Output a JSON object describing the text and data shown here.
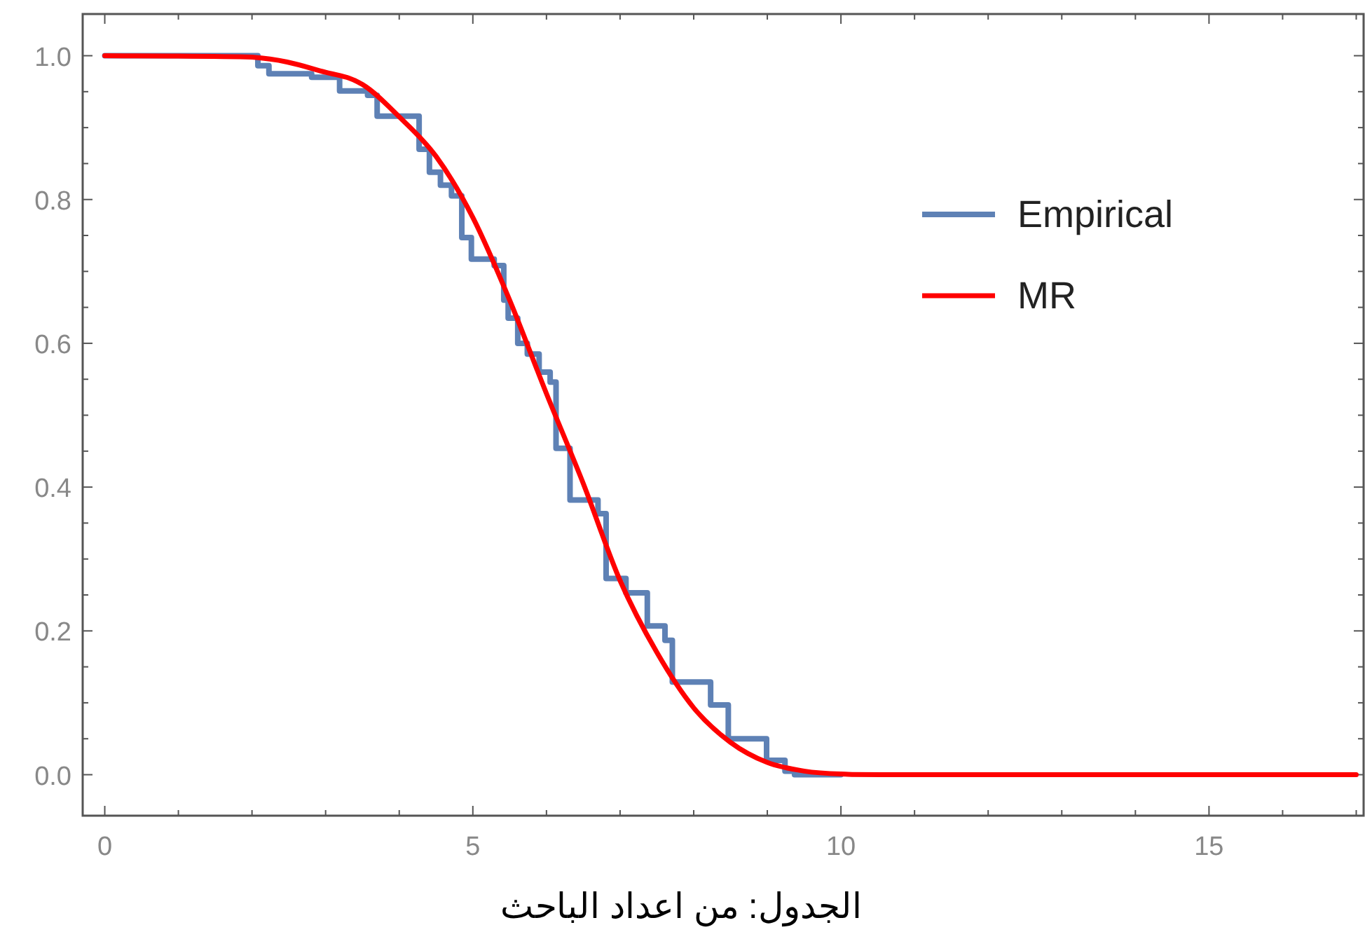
{
  "chart_data": {
    "type": "line",
    "xlim": [
      -0.3,
      17.1
    ],
    "ylim": [
      -0.057,
      1.058
    ],
    "xticks": [
      0,
      {
        "value": 1,
        "label": null
      },
      {
        "value": 2,
        "label": null
      },
      {
        "value": 3,
        "label": null
      },
      {
        "value": 4,
        "label": null
      },
      5,
      {
        "value": 6,
        "label": null
      },
      {
        "value": 7,
        "label": null
      },
      {
        "value": 8,
        "label": null
      },
      {
        "value": 9,
        "label": null
      },
      10,
      {
        "value": 11,
        "label": null
      },
      {
        "value": 12,
        "label": null
      },
      {
        "value": 13,
        "label": null
      },
      {
        "value": 14,
        "label": null
      },
      15,
      {
        "value": 16,
        "label": null
      },
      {
        "value": 17,
        "label": null
      }
    ],
    "yticks": [
      {
        "value": 0,
        "label": "0.0"
      },
      {
        "value": 0.05,
        "label": null
      },
      {
        "value": 0.1,
        "label": null
      },
      {
        "value": 0.15,
        "label": null
      },
      {
        "value": 0.2,
        "label": "0.2"
      },
      {
        "value": 0.25,
        "label": null
      },
      {
        "value": 0.3,
        "label": null
      },
      {
        "value": 0.35,
        "label": null
      },
      {
        "value": 0.4,
        "label": "0.4"
      },
      {
        "value": 0.45,
        "label": null
      },
      {
        "value": 0.5,
        "label": null
      },
      {
        "value": 0.55,
        "label": null
      },
      {
        "value": 0.6,
        "label": "0.6"
      },
      {
        "value": 0.65,
        "label": null
      },
      {
        "value": 0.7,
        "label": null
      },
      {
        "value": 0.75,
        "label": null
      },
      {
        "value": 0.8,
        "label": "0.8"
      },
      {
        "value": 0.85,
        "label": null
      },
      {
        "value": 0.9,
        "label": null
      },
      {
        "value": 0.95,
        "label": null
      },
      {
        "value": 1.0,
        "label": "1.0"
      }
    ],
    "legend": "top right",
    "annotations": [
      "الجدول: من اعداد الباحث"
    ],
    "series": [
      {
        "name": "Empirical",
        "type": "step",
        "color": "#5e81b5",
        "x": [
          0,
          2.08,
          2.23,
          2.81,
          3.19,
          3.57,
          3.7,
          4.27,
          4.41,
          4.56,
          4.71,
          4.85,
          4.98,
          5.29,
          5.42,
          5.48,
          5.61,
          5.74,
          5.9,
          6.05,
          6.13,
          6.32,
          6.7,
          6.81,
          7.08,
          7.37,
          7.61,
          7.71,
          8.23,
          8.47,
          8.99,
          9.24,
          9.37,
          10
        ],
        "values": [
          1.0,
          0.986,
          0.975,
          0.97,
          0.951,
          0.945,
          0.916,
          0.87,
          0.838,
          0.82,
          0.805,
          0.747,
          0.717,
          0.708,
          0.66,
          0.635,
          0.6,
          0.585,
          0.56,
          0.546,
          0.454,
          0.382,
          0.363,
          0.273,
          0.253,
          0.207,
          0.187,
          0.129,
          0.097,
          0.05,
          0.02,
          0.005,
          0.0,
          0.0
        ]
      },
      {
        "name": "MR",
        "color": "#ff0000",
        "x": [
          0,
          2,
          3,
          3.5,
          4,
          4.5,
          5,
          5.5,
          6,
          6.5,
          7,
          7.5,
          8,
          8.5,
          9,
          9.5,
          10,
          11,
          17
        ],
        "values": [
          1.0,
          0.998,
          0.977,
          0.96,
          0.915,
          0.86,
          0.775,
          0.66,
          0.53,
          0.405,
          0.27,
          0.17,
          0.093,
          0.045,
          0.017,
          0.005,
          0.001,
          0.0,
          0.0
        ]
      }
    ]
  }
}
